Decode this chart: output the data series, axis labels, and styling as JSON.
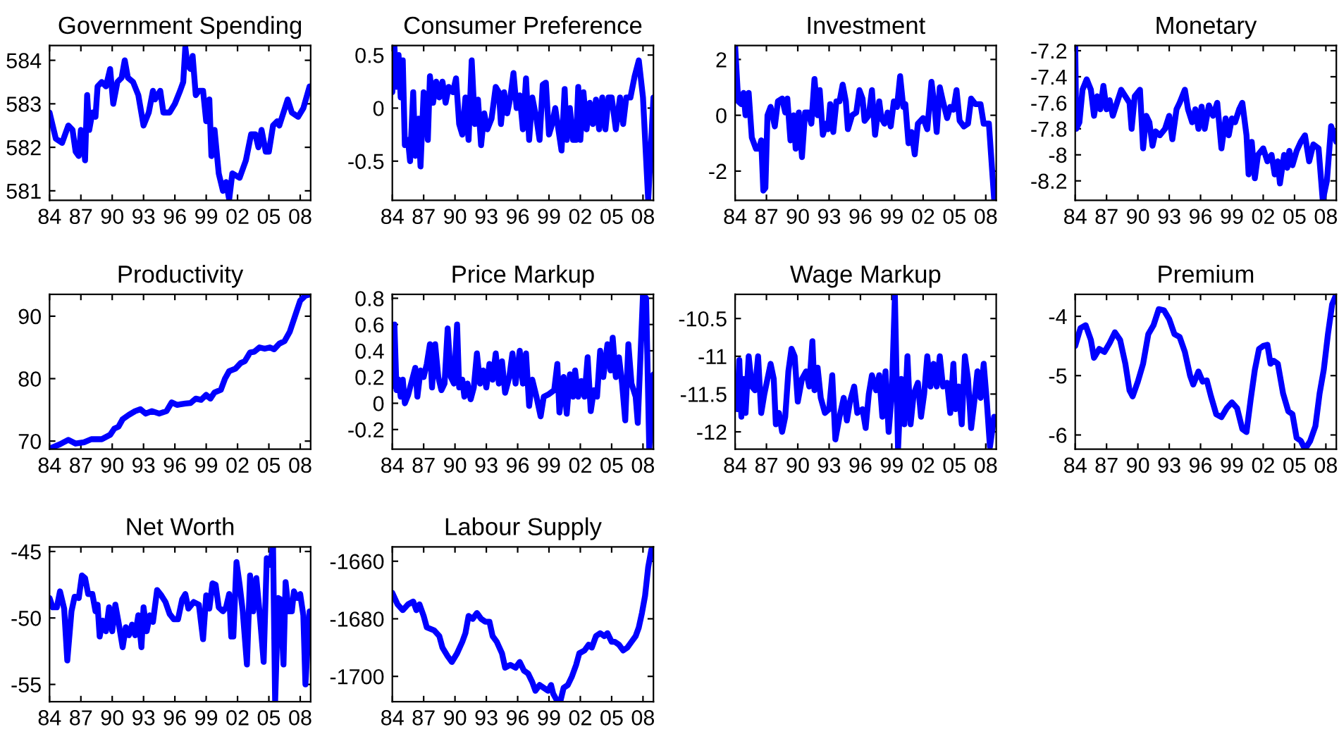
{
  "chart_data": [
    {
      "type": "line",
      "title": "Government Spending",
      "xlim": [
        1984,
        2009
      ],
      "xticks": [
        {
          "value": 1984,
          "label": "84"
        },
        {
          "value": 1987,
          "label": "87"
        },
        {
          "value": 1990,
          "label": "90"
        },
        {
          "value": 1993,
          "label": "93"
        },
        {
          "value": 1996,
          "label": "96"
        },
        {
          "value": 1999,
          "label": "99"
        },
        {
          "value": 2002,
          "label": "02"
        },
        {
          "value": 2005,
          "label": "05"
        },
        {
          "value": 2008,
          "label": "08"
        }
      ],
      "ylim": [
        580.78,
        584.34
      ],
      "yticks": [
        581,
        582,
        583,
        584
      ],
      "series": [
        {
          "color": "#0000ff",
          "x": [
            1984.0,
            1984.6,
            1985.2,
            1985.8,
            1986.2,
            1986.5,
            1986.8,
            1987.0,
            1987.2,
            1987.4,
            1987.6,
            1987.8,
            1988.1,
            1988.4,
            1988.6,
            1989.0,
            1989.4,
            1989.8,
            1990.1,
            1990.5,
            1990.9,
            1991.2,
            1991.5,
            1992.0,
            1992.5,
            1993.0,
            1993.5,
            1993.9,
            1994.1,
            1994.6,
            1994.9,
            1995.5,
            1996.0,
            1996.5,
            1996.8,
            1997.0,
            1997.2,
            1997.5,
            1997.7,
            1998.0,
            1998.3,
            1998.7,
            1999.0,
            1999.3,
            1999.5,
            1999.8,
            2000.2,
            2000.6,
            2000.9,
            2001.2,
            2001.5,
            2002.2,
            2002.8,
            2003.3,
            2003.7,
            2004.0,
            2004.3,
            2004.7,
            2005.0,
            2005.4,
            2005.8,
            2006.0,
            2006.4,
            2006.8,
            2007.2,
            2007.8,
            2008.3,
            2008.9
          ],
          "values": [
            582.8,
            582.2,
            582.1,
            582.5,
            582.4,
            581.9,
            581.8,
            582.4,
            582.3,
            581.7,
            583.2,
            582.4,
            582.8,
            582.7,
            583.4,
            583.5,
            583.4,
            583.8,
            583.0,
            583.5,
            583.6,
            584.0,
            583.6,
            583.5,
            583.2,
            582.5,
            582.8,
            583.3,
            583.1,
            583.3,
            582.8,
            582.8,
            583.0,
            583.3,
            583.5,
            584.3,
            583.9,
            583.8,
            584.1,
            583.2,
            583.3,
            583.3,
            582.6,
            583.1,
            581.8,
            582.4,
            581.4,
            581.0,
            581.2,
            580.8,
            581.4,
            581.3,
            581.7,
            582.3,
            582.3,
            582.0,
            582.4,
            581.9,
            581.9,
            582.5,
            582.6,
            582.5,
            582.8,
            583.1,
            582.8,
            582.7,
            582.9,
            583.4
          ]
        }
      ]
    },
    {
      "type": "line",
      "title": "Consumer Preference",
      "xlim": [
        1984,
        2009
      ],
      "xticks": [
        {
          "value": 1984,
          "label": "84"
        },
        {
          "value": 1987,
          "label": "87"
        },
        {
          "value": 1990,
          "label": "90"
        },
        {
          "value": 1993,
          "label": "93"
        },
        {
          "value": 1996,
          "label": "96"
        },
        {
          "value": 1999,
          "label": "99"
        },
        {
          "value": 2002,
          "label": "02"
        },
        {
          "value": 2005,
          "label": "05"
        },
        {
          "value": 2008,
          "label": "08"
        }
      ],
      "ylim": [
        -0.87,
        0.59
      ],
      "yticks": [
        -0.5,
        0,
        0.5
      ],
      "series": [
        {
          "color": "#0000ff",
          "x": [
            1984.0,
            1984.2,
            1984.4,
            1984.6,
            1984.8,
            1985.0,
            1985.2,
            1985.5,
            1985.7,
            1986.0,
            1986.2,
            1986.5,
            1986.7,
            1987.0,
            1987.2,
            1987.4,
            1987.6,
            1987.9,
            1988.2,
            1988.5,
            1988.8,
            1989.1,
            1989.4,
            1989.8,
            1990.1,
            1990.4,
            1990.7,
            1991.0,
            1991.3,
            1991.6,
            1991.9,
            1992.2,
            1992.5,
            1992.8,
            1993.1,
            1993.5,
            1993.9,
            1994.2,
            1994.4,
            1994.7,
            1995.0,
            1995.3,
            1995.6,
            1995.9,
            1996.2,
            1996.5,
            1996.8,
            1997.1,
            1997.4,
            1997.8,
            1998.1,
            1998.4,
            1998.7,
            1999.0,
            1999.3,
            1999.6,
            1999.9,
            2000.2,
            2000.5,
            2000.7,
            2001.0,
            2001.3,
            2001.6,
            2001.8,
            2002.0,
            2002.3,
            2002.6,
            2002.9,
            2003.2,
            2003.5,
            2003.8,
            2004.1,
            2004.4,
            2004.7,
            2005.0,
            2005.4,
            2005.8,
            2006.1,
            2006.4,
            2006.8,
            2007.2,
            2007.6,
            2008.0,
            2008.5,
            2009.0
          ],
          "values": [
            0.15,
            0.58,
            0.2,
            0.5,
            0.1,
            0.45,
            -0.35,
            -0.3,
            -0.5,
            0.15,
            -0.45,
            -0.1,
            -0.55,
            0.15,
            0.1,
            -0.3,
            0.3,
            0.05,
            0.25,
            0.1,
            0.25,
            0.05,
            0.2,
            0.15,
            0.28,
            -0.15,
            -0.25,
            0.1,
            -0.3,
            0.45,
            -0.15,
            0.08,
            -0.35,
            -0.05,
            -0.2,
            -0.1,
            0.2,
            0.15,
            -0.15,
            0.15,
            -0.05,
            0.1,
            0.33,
            0,
            0.12,
            -0.2,
            0.28,
            -0.3,
            0.1,
            -0.1,
            -0.3,
            0.22,
            0.24,
            -0.25,
            -0.15,
            0,
            -0.2,
            -0.4,
            0.18,
            -0.3,
            0,
            -0.3,
            -0.3,
            0.2,
            -0.3,
            0.15,
            -0.2,
            0.05,
            -0.15,
            0.08,
            -0.2,
            0.1,
            -0.2,
            0.1,
            0.1,
            -0.2,
            0.1,
            -0.15,
            0.1,
            0.1,
            0.3,
            0.45,
            0.1,
            -0.87,
            0.1
          ]
        }
      ]
    },
    {
      "type": "line",
      "title": "Investment",
      "xlim": [
        1984,
        2009
      ],
      "xticks": [
        {
          "value": 1984,
          "label": "84"
        },
        {
          "value": 1987,
          "label": "87"
        },
        {
          "value": 1990,
          "label": "90"
        },
        {
          "value": 1993,
          "label": "93"
        },
        {
          "value": 1996,
          "label": "96"
        },
        {
          "value": 1999,
          "label": "99"
        },
        {
          "value": 2002,
          "label": "02"
        },
        {
          "value": 2005,
          "label": "05"
        },
        {
          "value": 2008,
          "label": "08"
        }
      ],
      "ylim": [
        -3.05,
        2.5
      ],
      "yticks": [
        -2,
        0,
        2
      ],
      "series": [
        {
          "color": "#0000ff",
          "x": [
            1984.0,
            1984.3,
            1984.6,
            1984.8,
            1985.0,
            1985.3,
            1985.6,
            1986.0,
            1986.3,
            1986.5,
            1986.7,
            1986.9,
            1987.1,
            1987.4,
            1987.8,
            1988.1,
            1988.5,
            1988.8,
            1989.0,
            1989.3,
            1989.6,
            1989.8,
            1990.1,
            1990.4,
            1990.7,
            1991.0,
            1991.3,
            1991.6,
            1991.9,
            1992.1,
            1992.4,
            1992.7,
            1992.9,
            1993.1,
            1993.4,
            1993.7,
            1994.0,
            1994.3,
            1994.6,
            1994.8,
            1995.2,
            1995.6,
            1995.9,
            1996.2,
            1996.4,
            1996.8,
            1997.1,
            1997.4,
            1997.8,
            1998.0,
            1998.3,
            1998.6,
            1998.9,
            1999.2,
            1999.5,
            1999.8,
            2000.1,
            2000.3,
            2000.6,
            2000.9,
            2001.2,
            2001.5,
            2002.0,
            2002.4,
            2002.8,
            2003.1,
            2003.3,
            2003.6,
            2003.9,
            2004.3,
            2004.6,
            2004.9,
            2005.2,
            2005.5,
            2005.9,
            2006.3,
            2006.6,
            2007.0,
            2007.5,
            2007.8,
            2008.3,
            2008.8
          ],
          "values": [
            2.5,
            0.5,
            0.4,
            0.8,
            0.0,
            0.8,
            -0.8,
            -1.2,
            -1.2,
            -0.9,
            -2.7,
            -2.6,
            0,
            0.3,
            -0.4,
            0.5,
            0.6,
            0.1,
            0.6,
            -0.9,
            0,
            -1.2,
            0.1,
            -1.5,
            0.1,
            0.1,
            -0.3,
            1.3,
            0,
            0.9,
            -0.7,
            -0.3,
            -0.5,
            0.4,
            -0.6,
            0.5,
            0.5,
            1.1,
            0.5,
            -0.5,
            0,
            0.1,
            0.9,
            0.6,
            -0.2,
            0,
            0.9,
            -0.7,
            0.5,
            -0.1,
            -0.3,
            0.1,
            -0.4,
            0.5,
            0.3,
            1.4,
            0.3,
            0.4,
            -1.0,
            -0.6,
            -1.4,
            -0.3,
            -0.1,
            -0.5,
            1.2,
            0.3,
            -0.6,
            1.0,
            0.5,
            -0.1,
            0.3,
            0.2,
            0.9,
            -0.2,
            -0.4,
            -0.3,
            0.6,
            0.4,
            0.4,
            -0.3,
            -0.3,
            -3.0
          ]
        }
      ]
    },
    {
      "type": "line",
      "title": "Monetary",
      "xlim": [
        1984,
        2009
      ],
      "xticks": [
        {
          "value": 1984,
          "label": "84"
        },
        {
          "value": 1987,
          "label": "87"
        },
        {
          "value": 1990,
          "label": "90"
        },
        {
          "value": 1993,
          "label": "93"
        },
        {
          "value": 1996,
          "label": "96"
        },
        {
          "value": 1999,
          "label": "99"
        },
        {
          "value": 2002,
          "label": "02"
        },
        {
          "value": 2005,
          "label": "05"
        },
        {
          "value": 2008,
          "label": "08"
        }
      ],
      "ylim": [
        -8.35,
        -7.16
      ],
      "yticks": [
        -8.2,
        -8,
        -7.8,
        -7.6,
        -7.4,
        -7.2
      ],
      "series": [
        {
          "color": "#0000ff",
          "x": [
            1984.0,
            1984.1,
            1984.4,
            1984.7,
            1985.1,
            1985.5,
            1985.8,
            1986.1,
            1986.4,
            1986.7,
            1987.0,
            1987.3,
            1987.6,
            1988.0,
            1988.4,
            1988.8,
            1989.2,
            1989.4,
            1989.7,
            1990.2,
            1990.5,
            1990.8,
            1991.1,
            1991.4,
            1991.7,
            1992.1,
            1992.6,
            1993.0,
            1993.3,
            1993.7,
            1994.0,
            1994.5,
            1994.8,
            1995.2,
            1995.5,
            1995.8,
            1996.1,
            1996.4,
            1996.8,
            1997.2,
            1997.6,
            1998.0,
            1998.4,
            1998.7,
            1999.0,
            1999.3,
            1999.7,
            2000.0,
            2000.4,
            2000.6,
            2000.9,
            2001.2,
            2001.5,
            2002.0,
            2002.4,
            2002.8,
            2003.1,
            2003.4,
            2003.6,
            2004.0,
            2004.3,
            2004.5,
            2004.8,
            2005.2,
            2005.6,
            2006.0,
            2006.4,
            2006.8,
            2007.3,
            2007.7,
            2008.1,
            2008.5,
            2009.0
          ],
          "values": [
            -7.16,
            -7.8,
            -7.75,
            -7.5,
            -7.42,
            -7.5,
            -7.7,
            -7.55,
            -7.65,
            -7.47,
            -7.65,
            -7.58,
            -7.7,
            -7.6,
            -7.5,
            -7.55,
            -7.6,
            -7.8,
            -7.55,
            -7.5,
            -7.95,
            -7.7,
            -7.75,
            -7.93,
            -7.82,
            -7.85,
            -7.8,
            -7.7,
            -7.88,
            -7.65,
            -7.6,
            -7.5,
            -7.65,
            -7.75,
            -7.65,
            -7.8,
            -7.63,
            -7.8,
            -7.62,
            -7.7,
            -7.6,
            -7.95,
            -7.72,
            -7.85,
            -7.72,
            -7.75,
            -7.65,
            -7.6,
            -7.85,
            -8.15,
            -7.9,
            -8.18,
            -8.0,
            -7.95,
            -8.05,
            -8.0,
            -8.15,
            -8.05,
            -8.22,
            -8.0,
            -8.1,
            -7.97,
            -8.08,
            -7.97,
            -7.9,
            -7.85,
            -8.05,
            -7.92,
            -7.95,
            -8.35,
            -8.2,
            -7.78,
            -7.9
          ]
        }
      ]
    },
    {
      "type": "line",
      "title": "Productivity",
      "xlim": [
        1984,
        2009
      ],
      "xticks": [
        {
          "value": 1984,
          "label": "84"
        },
        {
          "value": 1987,
          "label": "87"
        },
        {
          "value": 1990,
          "label": "90"
        },
        {
          "value": 1993,
          "label": "93"
        },
        {
          "value": 1996,
          "label": "96"
        },
        {
          "value": 1999,
          "label": "99"
        },
        {
          "value": 2002,
          "label": "02"
        },
        {
          "value": 2005,
          "label": "05"
        },
        {
          "value": 2008,
          "label": "08"
        }
      ],
      "ylim": [
        68.7,
        93.5
      ],
      "yticks": [
        70,
        80,
        90
      ],
      "series": [
        {
          "color": "#0000ff",
          "x": [
            1984,
            1985,
            1985.8,
            1986.5,
            1987.3,
            1988,
            1989,
            1989.8,
            1990.2,
            1990.6,
            1991,
            1991.6,
            1992.2,
            1992.7,
            1993.2,
            1993.8,
            1994.5,
            1995.2,
            1995.7,
            1996.2,
            1997,
            1997.5,
            1998,
            1998.5,
            1999,
            1999.4,
            1999.8,
            2000.4,
            2000.8,
            2001.2,
            2001.8,
            2002.3,
            2002.7,
            2003.2,
            2003.6,
            2004.1,
            2004.6,
            2005.1,
            2005.5,
            2006,
            2006.5,
            2007,
            2007.5,
            2008,
            2008.5,
            2009
          ],
          "values": [
            68.8,
            69.5,
            70.2,
            69.6,
            69.8,
            70.3,
            70.3,
            71,
            72,
            72.3,
            73.5,
            74.2,
            74.8,
            75.1,
            74.4,
            74.8,
            74.4,
            74.8,
            76.2,
            75.8,
            76,
            76.1,
            76.8,
            76.6,
            77.4,
            76.8,
            77.8,
            78.2,
            80,
            81.2,
            81.6,
            82.5,
            82.8,
            84.2,
            84.3,
            85,
            84.8,
            85,
            84.7,
            85.6,
            86,
            87.5,
            90,
            92.5,
            93.3,
            93.5
          ]
        }
      ]
    },
    {
      "type": "line",
      "title": "Price Markup",
      "xlim": [
        1984,
        2009
      ],
      "xticks": [
        {
          "value": 1984,
          "label": "84"
        },
        {
          "value": 1987,
          "label": "87"
        },
        {
          "value": 1990,
          "label": "90"
        },
        {
          "value": 1993,
          "label": "93"
        },
        {
          "value": 1996,
          "label": "96"
        },
        {
          "value": 1999,
          "label": "99"
        },
        {
          "value": 2002,
          "label": "02"
        },
        {
          "value": 2005,
          "label": "05"
        },
        {
          "value": 2008,
          "label": "08"
        }
      ],
      "ylim": [
        -0.35,
        0.83
      ],
      "yticks": [
        -0.2,
        0,
        0.2,
        0.4,
        0.6,
        0.8
      ],
      "series": [
        {
          "color": "#0000ff",
          "x": [
            1984.0,
            1984.2,
            1984.4,
            1984.6,
            1984.8,
            1985.0,
            1985.2,
            1985.5,
            1985.8,
            1986.2,
            1986.4,
            1986.7,
            1987.0,
            1987.3,
            1987.6,
            1987.8,
            1988.1,
            1988.4,
            1988.7,
            1989.0,
            1989.3,
            1989.6,
            1989.9,
            1990.2,
            1990.4,
            1990.7,
            1990.9,
            1991.2,
            1991.5,
            1991.8,
            1992.1,
            1992.4,
            1992.7,
            1993.0,
            1993.3,
            1993.6,
            1993.9,
            1994.2,
            1994.5,
            1994.8,
            1995.2,
            1995.5,
            1995.8,
            1996.2,
            1996.5,
            1996.8,
            1997.1,
            1997.4,
            1997.8,
            1998.2,
            1998.5,
            1999.0,
            1999.5,
            1999.8,
            2000.0,
            2000.4,
            2000.7,
            2001.0,
            2001.3,
            2001.5,
            2001.8,
            2002.1,
            2002.4,
            2002.7,
            2003.0,
            2003.3,
            2003.6,
            2003.9,
            2004.2,
            2004.6,
            2004.9,
            2005.1,
            2005.4,
            2005.7,
            2006.0,
            2006.3,
            2006.6,
            2006.9,
            2007.3,
            2007.5,
            2008.0,
            2008.3,
            2008.6,
            2009.0
          ],
          "values": [
            0.13,
            0.6,
            0.1,
            0.18,
            0.05,
            0.18,
            0,
            0.06,
            0.15,
            0.27,
            0.05,
            0.25,
            0.2,
            0.3,
            0.45,
            0.12,
            0.45,
            0.2,
            0.1,
            0.15,
            0.57,
            0.2,
            0.15,
            0.6,
            0.12,
            0.18,
            0.05,
            0.15,
            0.03,
            0.12,
            0.38,
            0.15,
            0.25,
            0.12,
            0.3,
            0.18,
            0.38,
            0.15,
            0.32,
            0.08,
            0.2,
            0.38,
            0.15,
            0.4,
            0.15,
            0.38,
            -0.02,
            0.18,
            0.05,
            -0.1,
            0.05,
            0.07,
            0.1,
            0.3,
            -0.07,
            0.2,
            -0.08,
            0.22,
            0.05,
            0.25,
            0.05,
            0.17,
            0.05,
            0.35,
            -0.06,
            0.1,
            0.05,
            0.4,
            0.2,
            0.45,
            0.25,
            0.5,
            0.2,
            0.35,
            0.15,
            -0.13,
            0.45,
            0.15,
            0.05,
            -0.15,
            0.83,
            0.8,
            -0.35,
            0.22
          ]
        }
      ]
    },
    {
      "type": "line",
      "title": "Wage Markup",
      "xlim": [
        1984,
        2009
      ],
      "xticks": [
        {
          "value": 1984,
          "label": "84"
        },
        {
          "value": 1987,
          "label": "87"
        },
        {
          "value": 1990,
          "label": "90"
        },
        {
          "value": 1993,
          "label": "93"
        },
        {
          "value": 1996,
          "label": "96"
        },
        {
          "value": 1999,
          "label": "99"
        },
        {
          "value": 2002,
          "label": "02"
        },
        {
          "value": 2005,
          "label": "05"
        },
        {
          "value": 2008,
          "label": "08"
        }
      ],
      "ylim": [
        -12.23,
        -10.18
      ],
      "yticks": [
        -12,
        -11.5,
        -11,
        -10.5
      ],
      "series": [
        {
          "color": "#0000ff",
          "x": [
            1984.0,
            1984.2,
            1984.4,
            1984.6,
            1984.8,
            1985.0,
            1985.3,
            1985.6,
            1985.9,
            1986.2,
            1986.5,
            1986.8,
            1987.1,
            1987.4,
            1987.7,
            1987.9,
            1988.2,
            1988.5,
            1988.8,
            1989.1,
            1989.4,
            1989.7,
            1990.0,
            1990.4,
            1990.8,
            1991.1,
            1991.4,
            1991.6,
            1991.9,
            1992.2,
            1992.6,
            1993.0,
            1993.3,
            1993.6,
            1994.0,
            1994.4,
            1994.7,
            1995.0,
            1995.4,
            1995.7,
            1996.2,
            1996.5,
            1996.8,
            1997.1,
            1997.5,
            1997.8,
            1998.1,
            1998.4,
            1998.7,
            1999.0,
            1999.3,
            1999.6,
            1999.9,
            2000.2,
            2000.5,
            2000.8,
            2001.1,
            2001.5,
            2001.8,
            2002.1,
            2002.4,
            2002.7,
            2003.0,
            2003.3,
            2003.6,
            2003.9,
            2004.3,
            2004.6,
            2004.9,
            2005.1,
            2005.4,
            2005.7,
            2006.0,
            2006.3,
            2006.6,
            2006.9,
            2007.2,
            2007.5,
            2007.8,
            2008.1,
            2008.4,
            2008.8
          ],
          "values": [
            -11.3,
            -11.7,
            -11.05,
            -11.8,
            -11.3,
            -11.75,
            -11.0,
            -11.4,
            -11.45,
            -11.0,
            -11.75,
            -11.5,
            -11.3,
            -11.1,
            -11.3,
            -11.9,
            -11.75,
            -12.0,
            -11.8,
            -11.2,
            -10.9,
            -11.0,
            -11.6,
            -11.3,
            -11.2,
            -11.4,
            -10.8,
            -11.45,
            -11.15,
            -11.55,
            -11.75,
            -11.7,
            -11.25,
            -12.1,
            -11.8,
            -11.55,
            -11.85,
            -11.6,
            -11.4,
            -11.75,
            -11.7,
            -11.95,
            -11.5,
            -11.25,
            -11.45,
            -11.25,
            -11.8,
            -11.2,
            -12.0,
            -11.5,
            -10.2,
            -12.23,
            -11.3,
            -11.9,
            -11.0,
            -11.9,
            -11.5,
            -11.35,
            -11.8,
            -11.5,
            -11.0,
            -11.4,
            -11.1,
            -11.4,
            -11.0,
            -11.4,
            -11.35,
            -11.75,
            -11.1,
            -11.7,
            -11.4,
            -11.9,
            -11.0,
            -11.3,
            -11.95,
            -11.6,
            -11.2,
            -11.55,
            -11.1,
            -11.6,
            -12.2,
            -11.8
          ]
        }
      ]
    },
    {
      "type": "line",
      "title": "Premium",
      "xlim": [
        1984,
        2009
      ],
      "xticks": [
        {
          "value": 1984,
          "label": "84"
        },
        {
          "value": 1987,
          "label": "87"
        },
        {
          "value": 1990,
          "label": "90"
        },
        {
          "value": 1993,
          "label": "93"
        },
        {
          "value": 1996,
          "label": "96"
        },
        {
          "value": 1999,
          "label": "99"
        },
        {
          "value": 2002,
          "label": "02"
        },
        {
          "value": 2005,
          "label": "05"
        },
        {
          "value": 2008,
          "label": "08"
        }
      ],
      "ylim": [
        -6.24,
        -3.63
      ],
      "yticks": [
        -6,
        -5,
        -4
      ],
      "series": [
        {
          "color": "#0000ff",
          "x": [
            1984,
            1984.5,
            1985,
            1985.5,
            1985.8,
            1986.3,
            1986.8,
            1987.3,
            1987.8,
            1988.3,
            1988.8,
            1989.2,
            1989.5,
            1990.0,
            1990.5,
            1991.0,
            1991.5,
            1992.0,
            1992.5,
            1993.0,
            1993.5,
            1994.0,
            1994.5,
            1995.0,
            1995.3,
            1995.8,
            1996.2,
            1996.6,
            1997.0,
            1997.5,
            1998.0,
            1998.5,
            1999.0,
            1999.5,
            2000.0,
            2000.4,
            2000.8,
            2001.2,
            2001.6,
            2002.0,
            2002.4,
            2002.7,
            2003.0,
            2003.4,
            2003.9,
            2004.4,
            2004.8,
            2005.2,
            2005.6,
            2006.0,
            2006.5,
            2007.0,
            2007.4,
            2007.8,
            2008.2,
            2008.6,
            2009
          ],
          "values": [
            -4.5,
            -4.2,
            -4.15,
            -4.4,
            -4.7,
            -4.55,
            -4.6,
            -4.45,
            -4.27,
            -4.4,
            -4.8,
            -5.25,
            -5.35,
            -5.1,
            -4.8,
            -4.3,
            -4.15,
            -3.88,
            -3.9,
            -4.05,
            -4.3,
            -4.35,
            -4.6,
            -5.0,
            -5.15,
            -4.93,
            -5.1,
            -5.08,
            -5.35,
            -5.65,
            -5.7,
            -5.55,
            -5.45,
            -5.55,
            -5.9,
            -5.95,
            -5.4,
            -4.9,
            -4.55,
            -4.5,
            -4.48,
            -4.8,
            -4.75,
            -4.8,
            -5.3,
            -5.6,
            -5.65,
            -6.05,
            -6.1,
            -6.24,
            -6.1,
            -5.85,
            -5.3,
            -4.9,
            -4.3,
            -3.8,
            -3.63
          ]
        }
      ]
    },
    {
      "type": "line",
      "title": "Net Worth",
      "xlim": [
        1984,
        2009
      ],
      "xticks": [
        {
          "value": 1984,
          "label": "84"
        },
        {
          "value": 1987,
          "label": "87"
        },
        {
          "value": 1990,
          "label": "90"
        },
        {
          "value": 1993,
          "label": "93"
        },
        {
          "value": 1996,
          "label": "96"
        },
        {
          "value": 1999,
          "label": "99"
        },
        {
          "value": 2002,
          "label": "02"
        },
        {
          "value": 2005,
          "label": "05"
        },
        {
          "value": 2008,
          "label": "08"
        }
      ],
      "ylim": [
        -56.3,
        -44.65
      ],
      "yticks": [
        -55,
        -50,
        -45
      ],
      "series": [
        {
          "color": "#0000ff",
          "x": [
            1984.0,
            1984.3,
            1984.7,
            1985.0,
            1985.4,
            1985.7,
            1986.1,
            1986.4,
            1986.8,
            1987.1,
            1987.4,
            1987.7,
            1988.1,
            1988.4,
            1988.6,
            1988.8,
            1989.1,
            1989.4,
            1989.7,
            1990.0,
            1990.3,
            1990.6,
            1991.0,
            1991.3,
            1991.6,
            1991.9,
            1992.2,
            1992.5,
            1992.8,
            1993.0,
            1993.3,
            1993.6,
            1993.9,
            1994.3,
            1994.7,
            1995.1,
            1995.5,
            1995.9,
            1996.3,
            1996.7,
            1997.0,
            1997.3,
            1997.8,
            1998.3,
            1998.7,
            1999.0,
            1999.3,
            1999.6,
            1999.9,
            2000.2,
            2000.6,
            2000.9,
            2001.2,
            2001.4,
            2001.6,
            2001.9,
            2002.2,
            2002.5,
            2002.9,
            2003.2,
            2003.5,
            2003.8,
            2004.1,
            2004.5,
            2004.8,
            2005.1,
            2005.4,
            2005.6,
            2005.9,
            2006.1,
            2006.4,
            2006.6,
            2006.9,
            2007.2,
            2007.4,
            2007.7,
            2008.0,
            2008.3,
            2008.5,
            2008.9
          ],
          "values": [
            -48.5,
            -49.2,
            -49.2,
            -48,
            -49.3,
            -53.2,
            -49.5,
            -48.4,
            -48.5,
            -46.8,
            -47,
            -48.2,
            -48.2,
            -49.5,
            -49,
            -51.4,
            -50.2,
            -51,
            -49.2,
            -51,
            -49,
            -50.3,
            -52.2,
            -50.7,
            -51.3,
            -50.5,
            -51.3,
            -49.8,
            -52.2,
            -49.2,
            -51,
            -49.8,
            -50.3,
            -47.9,
            -48.3,
            -48.8,
            -49.7,
            -50.1,
            -50.1,
            -48.6,
            -48.2,
            -49.3,
            -48.8,
            -49,
            -51.6,
            -48.3,
            -49.3,
            -47.4,
            -47.5,
            -49.2,
            -49.5,
            -49.2,
            -48.2,
            -51.4,
            -51.4,
            -45.8,
            -47.5,
            -49.5,
            -53.5,
            -46.8,
            -49.5,
            -47,
            -49.5,
            -53.3,
            -45.5,
            -46,
            -44.65,
            -56.3,
            -48.5,
            -48.6,
            -53.5,
            -47.3,
            -49.5,
            -49.5,
            -48,
            -48.5,
            -48.2,
            -49.8,
            -55,
            -49.5
          ]
        }
      ]
    },
    {
      "type": "line",
      "title": "Labour Supply",
      "xlim": [
        1984,
        2009
      ],
      "xticks": [
        {
          "value": 1984,
          "label": "84"
        },
        {
          "value": 1987,
          "label": "87"
        },
        {
          "value": 1990,
          "label": "90"
        },
        {
          "value": 1993,
          "label": "93"
        },
        {
          "value": 1996,
          "label": "96"
        },
        {
          "value": 1999,
          "label": "99"
        },
        {
          "value": 2002,
          "label": "02"
        },
        {
          "value": 2005,
          "label": "05"
        },
        {
          "value": 2008,
          "label": "08"
        }
      ],
      "ylim": [
        -1708.8,
        -1655
      ],
      "yticks": [
        -1700,
        -1680,
        -1660
      ],
      "series": [
        {
          "color": "#0000ff",
          "x": [
            1984,
            1984.5,
            1985,
            1985.5,
            1986,
            1986.3,
            1986.6,
            1987,
            1987.3,
            1988,
            1988.5,
            1988.8,
            1989.3,
            1989.7,
            1990.2,
            1990.7,
            1991.0,
            1991.3,
            1991.7,
            1992.1,
            1992.5,
            1992.9,
            1993.3,
            1993.6,
            1994,
            1994.5,
            1994.8,
            1995.3,
            1995.8,
            1996.2,
            1996.6,
            1997,
            1997.4,
            1997.7,
            1998.1,
            1998.5,
            1998.9,
            1999.2,
            1999.4,
            1999.7,
            2000.1,
            2000.4,
            2000.8,
            2001.2,
            2001.6,
            2001.9,
            2002.4,
            2002.8,
            2003.1,
            2003.5,
            2003.9,
            2004.3,
            2004.6,
            2005,
            2005.3,
            2005.7,
            2006.1,
            2006.5,
            2006.9,
            2007.3,
            2007.6,
            2007.9,
            2008.2,
            2008.5,
            2008.8,
            2009
          ],
          "values": [
            -1671,
            -1675,
            -1677,
            -1675,
            -1674,
            -1677,
            -1675,
            -1679,
            -1683,
            -1684,
            -1686,
            -1690,
            -1693,
            -1695,
            -1692,
            -1688,
            -1685,
            -1679,
            -1680,
            -1678,
            -1680,
            -1681,
            -1681,
            -1686,
            -1688,
            -1692,
            -1697,
            -1696,
            -1697,
            -1695,
            -1698,
            -1699,
            -1702,
            -1705,
            -1703,
            -1704,
            -1705,
            -1703,
            -1706,
            -1708,
            -1708.5,
            -1704,
            -1703,
            -1700,
            -1696,
            -1692,
            -1691,
            -1689,
            -1690,
            -1686,
            -1685,
            -1686,
            -1685,
            -1688,
            -1688,
            -1689,
            -1691,
            -1690,
            -1688,
            -1686,
            -1683,
            -1678,
            -1672,
            -1662,
            -1656,
            -1655
          ]
        }
      ]
    }
  ]
}
